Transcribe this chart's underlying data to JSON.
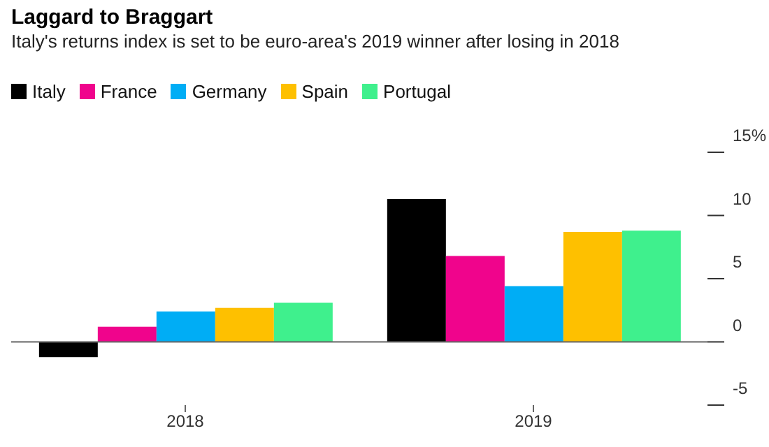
{
  "chart_data": {
    "type": "bar",
    "title": "Laggard to Braggart",
    "subtitle": "Italy's returns index is set to be euro-area's 2019 winner after losing in 2018",
    "categories": [
      "2018",
      "2019"
    ],
    "series": [
      {
        "name": "Italy",
        "color": "#000000",
        "values": [
          -1.2,
          11.3
        ]
      },
      {
        "name": "France",
        "color": "#f0048c",
        "values": [
          1.2,
          6.8
        ]
      },
      {
        "name": "Germany",
        "color": "#00adf5",
        "values": [
          2.4,
          4.4
        ]
      },
      {
        "name": "Spain",
        "color": "#fec000",
        "values": [
          2.7,
          8.7
        ]
      },
      {
        "name": "Portugal",
        "color": "#3ff08d",
        "values": [
          3.1,
          8.8
        ]
      }
    ],
    "ylim": [
      -5,
      15
    ],
    "yticks": [
      -5,
      0,
      5,
      10,
      {
        "value": 15,
        "label": "15%"
      }
    ],
    "ref_lines": [
      {
        "axis": "y",
        "value": 0,
        "color": "#666666"
      }
    ],
    "grid": false,
    "legend": "top left"
  }
}
